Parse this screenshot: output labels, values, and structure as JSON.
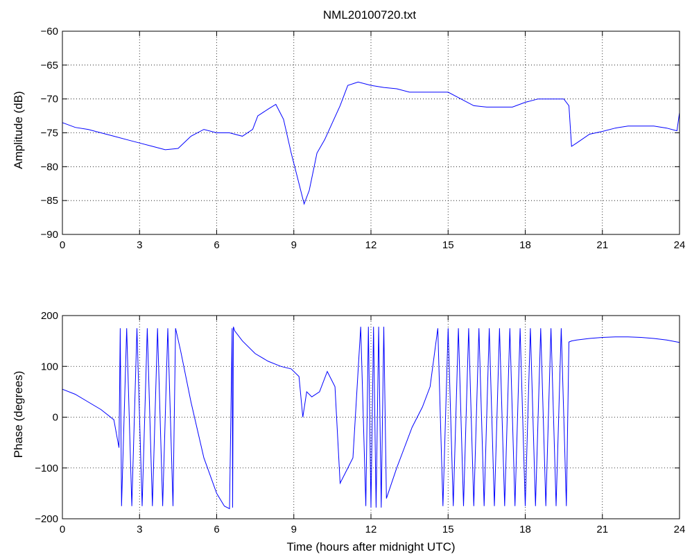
{
  "figure": {
    "title": "NML20100720.txt"
  },
  "chart_data": [
    {
      "type": "line",
      "title": "NML20100720.txt",
      "xlabel": "",
      "ylabel": "Amplitude (dB)",
      "xlim": [
        0,
        24
      ],
      "ylim": [
        -90,
        -60
      ],
      "xticks": [
        0,
        3,
        6,
        9,
        12,
        15,
        18,
        21,
        24
      ],
      "yticks": [
        -90,
        -85,
        -80,
        -75,
        -70,
        -65,
        -60
      ],
      "grid": true,
      "series": [
        {
          "color": "#0000ff",
          "x": [
            0,
            0.5,
            1,
            1.5,
            2,
            2.5,
            3,
            3.5,
            4,
            4.5,
            5,
            5.5,
            6,
            6.5,
            7,
            7.4,
            7.6,
            8,
            8.3,
            8.6,
            8.9,
            9.1,
            9.3,
            9.4,
            9.6,
            9.9,
            10.2,
            10.5,
            10.8,
            11.1,
            11.5,
            12,
            12.5,
            13,
            13.5,
            14,
            14.5,
            15,
            15.5,
            16,
            16.5,
            17,
            17.5,
            18,
            18.5,
            19,
            19.5,
            19.7,
            19.8,
            20,
            20.5,
            21,
            21.5,
            22,
            22.5,
            23,
            23.5,
            23.9,
            24
          ],
          "y": [
            -73.5,
            -74.2,
            -74.5,
            -75,
            -75.5,
            -76,
            -76.5,
            -77,
            -77.5,
            -77.3,
            -75.5,
            -74.5,
            -75,
            -75,
            -75.5,
            -74.5,
            -72.5,
            -71.5,
            -70.8,
            -73,
            -78,
            -81,
            -84,
            -85.5,
            -83.5,
            -78,
            -76,
            -73.5,
            -71,
            -68,
            -67.5,
            -68,
            -68.3,
            -68.5,
            -69,
            -69,
            -69,
            -69,
            -70,
            -71,
            -71.2,
            -71.2,
            -71.2,
            -70.5,
            -70,
            -70,
            -70,
            -71,
            -77,
            -76.5,
            -75.2,
            -74.8,
            -74.3,
            -74,
            -74,
            -74,
            -74.3,
            -74.7,
            -72
          ]
        }
      ]
    },
    {
      "type": "line",
      "title": "",
      "xlabel": "Time (hours after midnight UTC)",
      "ylabel": "Phase (degrees)",
      "xlim": [
        0,
        24
      ],
      "ylim": [
        -200,
        200
      ],
      "xticks": [
        0,
        3,
        6,
        9,
        12,
        15,
        18,
        21,
        24
      ],
      "yticks": [
        -200,
        -100,
        0,
        100,
        200
      ],
      "grid": true,
      "series": [
        {
          "color": "#0000ff",
          "x": [
            0,
            0.5,
            1,
            1.5,
            2,
            2.2,
            2.25,
            2.3,
            2.5,
            2.7,
            2.9,
            3.1,
            3.3,
            3.5,
            3.7,
            3.9,
            4.1,
            4.3,
            4.4,
            4.6,
            5,
            5.5,
            6,
            6.3,
            6.5,
            6.6,
            6.62,
            6.65,
            6.7,
            7,
            7.5,
            8,
            8.5,
            8.9,
            9.2,
            9.35,
            9.5,
            9.7,
            10,
            10.3,
            10.6,
            10.8,
            11,
            11.3,
            11.6,
            11.8,
            11.9,
            12,
            12.1,
            12.2,
            12.3,
            12.4,
            12.5,
            12.6,
            12.8,
            13,
            13.3,
            13.6,
            14,
            14.3,
            14.6,
            14.8,
            15,
            15.2,
            15.4,
            15.6,
            15.8,
            16,
            16.2,
            16.4,
            16.6,
            16.8,
            17,
            17.2,
            17.4,
            17.6,
            17.8,
            18,
            18.2,
            18.4,
            18.6,
            18.8,
            19,
            19.2,
            19.4,
            19.6,
            19.7,
            19.8,
            20,
            20.5,
            21,
            21.5,
            22,
            22.5,
            23,
            23.5,
            24
          ],
          "y": [
            55,
            45,
            30,
            15,
            -5,
            -60,
            175,
            -175,
            175,
            -175,
            175,
            -175,
            175,
            -175,
            175,
            -175,
            175,
            -175,
            175,
            130,
            30,
            -80,
            -150,
            -175,
            -180,
            175,
            -178,
            178,
            170,
            150,
            125,
            110,
            100,
            95,
            80,
            0,
            50,
            40,
            50,
            90,
            60,
            -130,
            -110,
            -80,
            178,
            -175,
            178,
            -178,
            178,
            -178,
            178,
            -178,
            178,
            -160,
            -130,
            -100,
            -60,
            -20,
            20,
            60,
            175,
            -175,
            175,
            -175,
            175,
            -175,
            175,
            -175,
            175,
            -175,
            175,
            -175,
            175,
            -175,
            175,
            -175,
            175,
            -175,
            175,
            -175,
            175,
            -175,
            175,
            -175,
            175,
            -175,
            148,
            150,
            152,
            155,
            157,
            158,
            158,
            157,
            155,
            152,
            147
          ]
        }
      ]
    }
  ]
}
